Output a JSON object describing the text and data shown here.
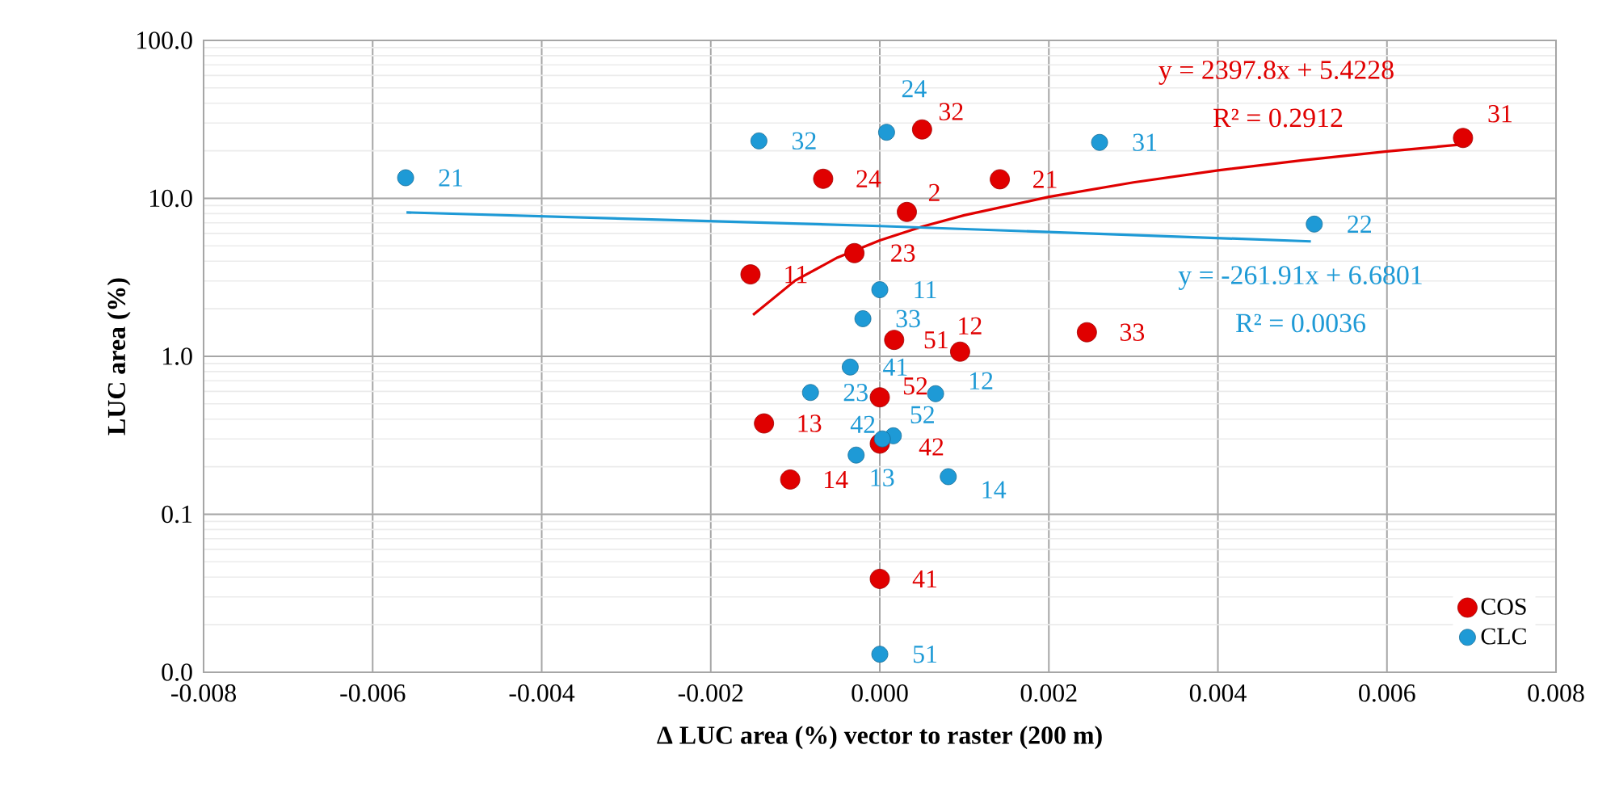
{
  "chart_data": {
    "type": "scatter",
    "xlabel": "Δ LUC area (%) vector to raster (200 m)",
    "ylabel": "LUC area (%)",
    "xlim": [
      -0.008,
      0.008
    ],
    "ylim": [
      0.01,
      100
    ],
    "log": "y",
    "grid": true,
    "legend": "bottom right",
    "xticks": [
      {
        "value": -0.008,
        "label": "-0.008"
      },
      {
        "value": -0.006,
        "label": "-0.006"
      },
      {
        "value": -0.004,
        "label": "-0.004"
      },
      {
        "value": -0.002,
        "label": "-0.002"
      },
      {
        "value": 0,
        "label": "0.000"
      },
      {
        "value": 0.002,
        "label": "0.002"
      },
      {
        "value": 0.004,
        "label": "0.004"
      },
      {
        "value": 0.006,
        "label": "0.006"
      },
      {
        "value": 0.008,
        "label": "0.008"
      }
    ],
    "yticks": [
      {
        "value": 0.01,
        "label": "0.0"
      },
      0.1,
      {
        "value": 1,
        "label": "1.0"
      },
      {
        "value": 10,
        "label": "10.0"
      },
      {
        "value": 100,
        "label": "100.0"
      }
    ],
    "series": [
      {
        "name": "COS",
        "marker": "circle",
        "color": "#e00000",
        "x": [
          0.0069,
          0.0005,
          -0.00067,
          0.00142,
          0.00032,
          -0.0003,
          -0.00153,
          0.00245,
          0.00017,
          0.00095,
          0.0,
          -0.00137,
          0.0,
          -0.00106,
          0.0
        ],
        "values": [
          24.1,
          27.3,
          13.3,
          13.2,
          8.2,
          4.5,
          3.3,
          1.42,
          1.27,
          1.07,
          0.55,
          0.376,
          0.28,
          0.166,
          0.039
        ]
      },
      {
        "name": "CLC",
        "marker": "circle",
        "color": "#1e9ad6",
        "x": [
          -0.00561,
          -0.00143,
          8e-05,
          0.0026,
          0.00514,
          0.0,
          -0.0002,
          -0.00035,
          -0.00082,
          0.00066,
          0.00016,
          3e-05,
          -0.00028,
          0.00081,
          0.0
        ],
        "values": [
          13.5,
          23.1,
          26.2,
          22.6,
          6.87,
          2.64,
          1.73,
          0.855,
          0.59,
          0.58,
          0.314,
          0.3,
          0.237,
          0.173,
          0.013
        ]
      },
      {
        "type": "line",
        "marker": "none",
        "line_style": "solid",
        "color": "#e00000",
        "x": [
          -0.0015,
          -0.001,
          -0.0005,
          0,
          0.0005,
          0.001,
          0.002,
          0.003,
          0.004,
          0.005,
          0.006,
          0.0069
        ],
        "values": [
          1.83,
          3.02,
          4.22,
          5.42,
          6.62,
          7.82,
          10.22,
          12.62,
          15.02,
          17.41,
          19.81,
          21.97
        ]
      },
      {
        "type": "line",
        "marker": "none",
        "line_style": "solid",
        "color": "#1e9ad6",
        "x": [
          -0.0056,
          0,
          0.0051
        ],
        "values": [
          8.15,
          6.68,
          5.34
        ]
      }
    ],
    "annotations": [
      {
        "text": "31",
        "x": 0.0069,
        "y": 24.1
      },
      {
        "text": "32",
        "x": 0.0005,
        "y": 27.3
      },
      {
        "text": "24",
        "x": -0.00067,
        "y": 13.3
      },
      {
        "text": "21",
        "x": 0.00142,
        "y": 13.2
      },
      {
        "text": "2",
        "x": 0.00032,
        "y": 8.2
      },
      {
        "text": "23",
        "x": -0.0003,
        "y": 4.5
      },
      {
        "text": "11",
        "x": -0.00153,
        "y": 3.3
      },
      {
        "text": "33",
        "x": 0.00245,
        "y": 1.42
      },
      {
        "text": "51",
        "x": 0.00017,
        "y": 1.27
      },
      {
        "text": "12",
        "x": 0.00095,
        "y": 1.07
      },
      {
        "text": "52",
        "x": 0.0,
        "y": 0.55
      },
      {
        "text": "13",
        "x": -0.00137,
        "y": 0.376
      },
      {
        "text": "42",
        "x": 0.0,
        "y": 0.28
      },
      {
        "text": "14",
        "x": -0.00106,
        "y": 0.166
      },
      {
        "text": "41",
        "x": 0.0,
        "y": 0.039
      },
      {
        "text": "21",
        "x": -0.00561,
        "y": 13.5
      },
      {
        "text": "32",
        "x": -0.00143,
        "y": 23.1
      },
      {
        "text": "24",
        "x": 8e-05,
        "y": 26.2
      },
      {
        "text": "31",
        "x": 0.0026,
        "y": 22.6
      },
      {
        "text": "22",
        "x": 0.00514,
        "y": 6.87
      },
      {
        "text": "11",
        "x": 0.0,
        "y": 2.64
      },
      {
        "text": "33",
        "x": -0.0002,
        "y": 1.73
      },
      {
        "text": "41",
        "x": -0.00035,
        "y": 0.855
      },
      {
        "text": "23",
        "x": -0.00082,
        "y": 0.59
      },
      {
        "text": "12",
        "x": 0.00066,
        "y": 0.58
      },
      {
        "text": "52",
        "x": 0.00016,
        "y": 0.314
      },
      {
        "text": "42",
        "x": 3e-05,
        "y": 0.3
      },
      {
        "text": "13",
        "x": -0.00028,
        "y": 0.237
      },
      {
        "text": "14",
        "x": 0.00081,
        "y": 0.173
      },
      {
        "text": "51",
        "x": 0.0,
        "y": 0.013
      },
      "y = 2397.8x + 5.4228",
      "R² = 0.2912",
      "y = -261.91x + 6.6801",
      "R² = 0.0036"
    ]
  }
}
